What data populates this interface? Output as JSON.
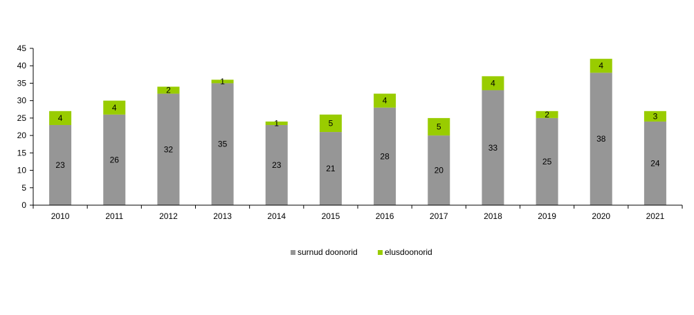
{
  "chart_data": {
    "type": "bar",
    "stacked": true,
    "categories": [
      "2010",
      "2011",
      "2012",
      "2013",
      "2014",
      "2015",
      "2016",
      "2017",
      "2018",
      "2019",
      "2020",
      "2021"
    ],
    "series": [
      {
        "name": "surnud doonorid",
        "color": "#969696",
        "values": [
          23,
          26,
          32,
          35,
          23,
          21,
          28,
          20,
          33,
          25,
          38,
          24
        ]
      },
      {
        "name": "elusdoonorid",
        "color": "#99cc00",
        "values": [
          4,
          4,
          2,
          1,
          1,
          5,
          4,
          5,
          4,
          2,
          4,
          3
        ]
      }
    ],
    "title": "",
    "xlabel": "",
    "ylabel": "",
    "ylim": [
      0,
      45
    ],
    "yticks": [
      "0",
      "5",
      "10",
      "15",
      "20",
      "25",
      "30",
      "35",
      "40",
      "45"
    ],
    "grid": false,
    "legend_position": "bottom"
  }
}
